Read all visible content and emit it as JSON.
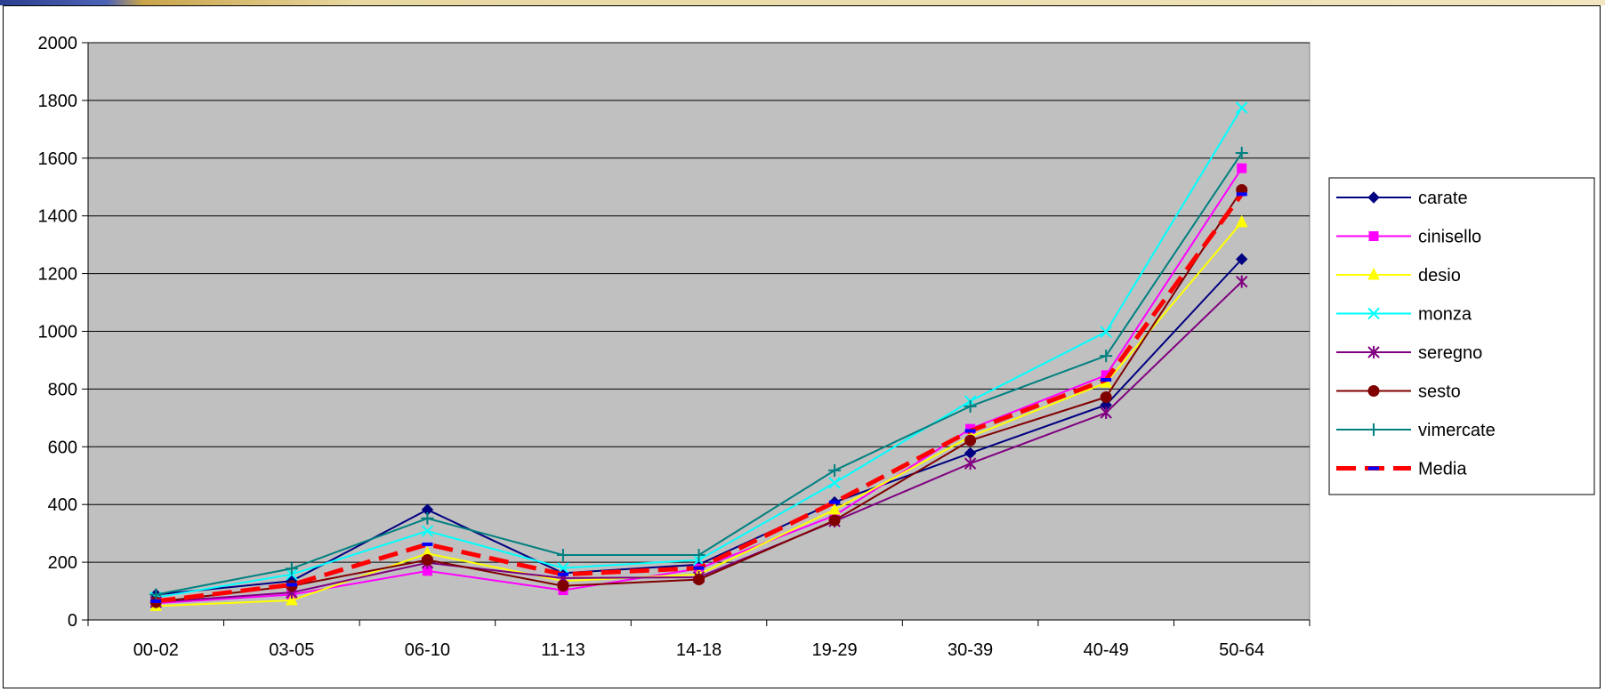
{
  "chart_data": {
    "type": "line",
    "title": "",
    "xlabel": "",
    "ylabel": "",
    "categories": [
      "00-02",
      "03-05",
      "06-10",
      "11-13",
      "14-18",
      "19-29",
      "30-39",
      "40-49",
      "50-64"
    ],
    "ylim": [
      0,
      2000
    ],
    "yticks": [
      0,
      200,
      400,
      600,
      800,
      1000,
      1200,
      1400,
      1600,
      1800,
      2000
    ],
    "ytick_labels": [
      "0",
      "200",
      "400",
      "600",
      "800",
      "1000",
      "1200",
      "1400",
      "1600",
      "1800",
      "2000"
    ],
    "grid": "horizontal",
    "plot_background": "#c0c0c0",
    "legend_position": "right",
    "series": [
      {
        "name": "carate",
        "color": "#000080",
        "marker": "diamond",
        "values": [
          88,
          135,
          382,
          162,
          192,
          408,
          578,
          745,
          1250
        ]
      },
      {
        "name": "cinisello",
        "color": "#ff00ff",
        "marker": "square",
        "values": [
          58,
          88,
          170,
          103,
          178,
          362,
          662,
          848,
          1565
        ]
      },
      {
        "name": "desio",
        "color": "#ffff00",
        "marker": "triangle",
        "values": [
          48,
          68,
          230,
          135,
          158,
          382,
          635,
          822,
          1378
        ]
      },
      {
        "name": "monza",
        "color": "#00ffff",
        "marker": "x",
        "values": [
          78,
          158,
          308,
          180,
          208,
          475,
          758,
          998,
          1775
        ]
      },
      {
        "name": "seregno",
        "color": "#800080",
        "marker": "star",
        "values": [
          62,
          95,
          198,
          145,
          148,
          342,
          542,
          718,
          1172
        ]
      },
      {
        "name": "sesto",
        "color": "#800000",
        "marker": "circle",
        "values": [
          62,
          118,
          208,
          118,
          140,
          345,
          622,
          772,
          1490
        ]
      },
      {
        "name": "vimercate",
        "color": "#008080",
        "marker": "plus",
        "values": [
          88,
          178,
          352,
          225,
          225,
          518,
          740,
          915,
          1618
        ]
      },
      {
        "name": "Media",
        "color": "#ff0000",
        "marker": "dash",
        "dashed": true,
        "values": [
          65,
          122,
          262,
          158,
          180,
          408,
          655,
          832,
          1475
        ]
      }
    ]
  }
}
